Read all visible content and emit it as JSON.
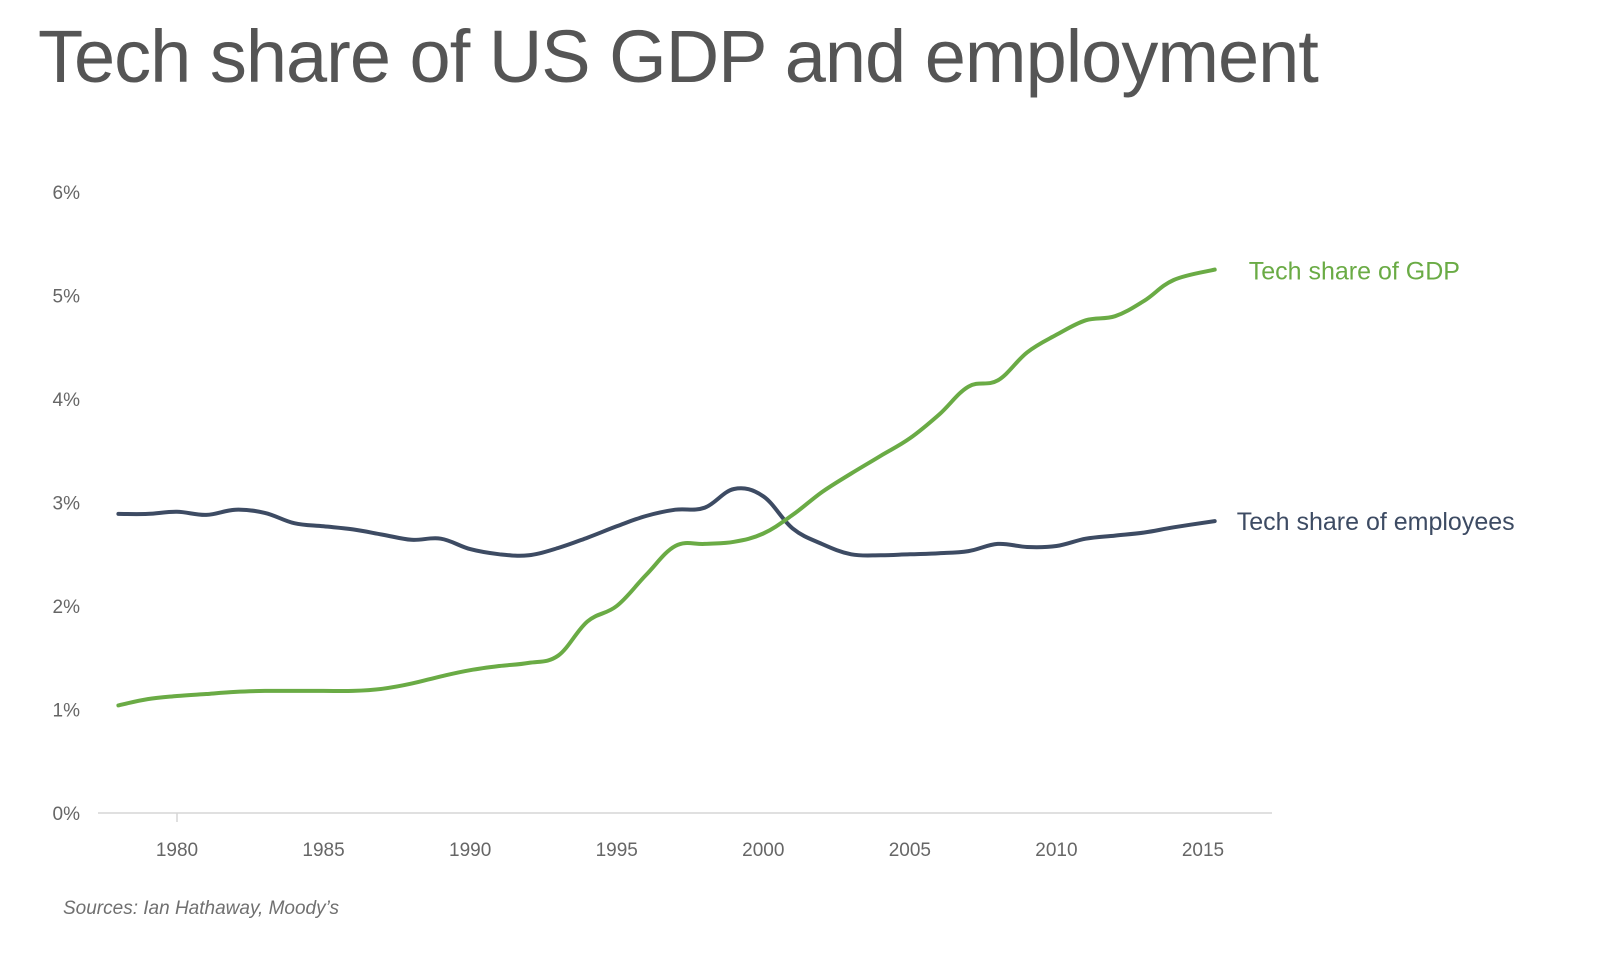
{
  "chart_data": {
    "type": "line",
    "title": "Tech share of US GDP and employment",
    "source": "Sources: Ian Hathaway, Moody’s",
    "xlim": [
      1978,
      2017
    ],
    "ylim": [
      0,
      6
    ],
    "x_ticks": [
      1980,
      1985,
      1990,
      1995,
      2000,
      2005,
      2010,
      2015
    ],
    "x_tick_labels": [
      "1980",
      "1985",
      "1990",
      "1995",
      "2000",
      "2005",
      "2010",
      "2015"
    ],
    "y_ticks": [
      0,
      1,
      2,
      3,
      4,
      5,
      6
    ],
    "y_tick_labels": [
      "0%",
      "1%",
      "2%",
      "3%",
      "4%",
      "5%",
      "6%"
    ],
    "grid": false,
    "legend": "direct labels at line ends",
    "series": [
      {
        "name": "Tech share of GDP",
        "color": "#6aab45",
        "x": [
          1978,
          1979,
          1980,
          1981,
          1982,
          1983,
          1984,
          1985,
          1986,
          1987,
          1988,
          1989,
          1990,
          1991,
          1992,
          1993,
          1994,
          1995,
          1996,
          1997,
          1998,
          1999,
          2000,
          2001,
          2002,
          2003,
          2004,
          2005,
          2006,
          2007,
          2008,
          2009,
          2010,
          2011,
          2012,
          2013,
          2014,
          2015.4
        ],
        "values": [
          1.04,
          1.1,
          1.13,
          1.15,
          1.17,
          1.18,
          1.18,
          1.18,
          1.18,
          1.2,
          1.25,
          1.32,
          1.38,
          1.42,
          1.45,
          1.52,
          1.85,
          2.0,
          2.3,
          2.58,
          2.6,
          2.62,
          2.7,
          2.88,
          3.1,
          3.28,
          3.45,
          3.62,
          3.85,
          4.12,
          4.18,
          4.45,
          4.62,
          4.76,
          4.8,
          4.95,
          5.15,
          5.25
        ]
      },
      {
        "name": "Tech share of employees",
        "color": "#3d4b63",
        "x": [
          1978,
          1979,
          1980,
          1981,
          1982,
          1983,
          1984,
          1985,
          1986,
          1987,
          1988,
          1989,
          1990,
          1991,
          1992,
          1993,
          1994,
          1995,
          1996,
          1997,
          1998,
          1999,
          2000,
          2001,
          2002,
          2003,
          2004,
          2005,
          2006,
          2007,
          2008,
          2009,
          2010,
          2011,
          2012,
          2013,
          2014,
          2015.4
        ],
        "values": [
          2.89,
          2.89,
          2.91,
          2.88,
          2.93,
          2.9,
          2.8,
          2.77,
          2.74,
          2.69,
          2.64,
          2.65,
          2.55,
          2.5,
          2.49,
          2.56,
          2.66,
          2.77,
          2.87,
          2.93,
          2.95,
          3.13,
          3.06,
          2.75,
          2.6,
          2.5,
          2.49,
          2.5,
          2.51,
          2.53,
          2.6,
          2.57,
          2.58,
          2.65,
          2.68,
          2.71,
          2.76,
          2.82
        ]
      }
    ]
  }
}
